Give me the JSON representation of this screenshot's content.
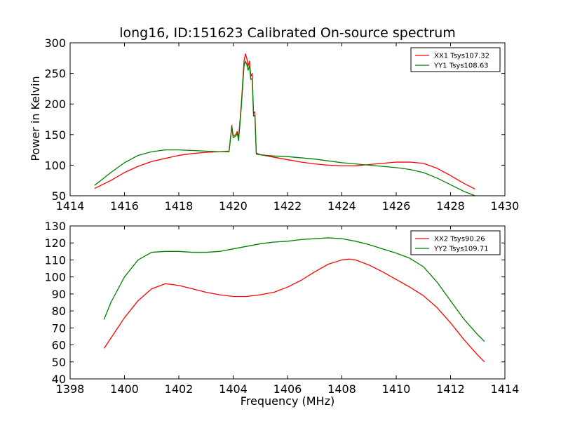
{
  "chart_data": [
    {
      "type": "line",
      "title": "long16, ID:151623 Calibrated On-source spectrum",
      "xlabel": "",
      "ylabel": "Power in Kelvin",
      "xlim": [
        1414,
        1430
      ],
      "ylim": [
        50,
        300
      ],
      "xticks": [
        1414,
        1416,
        1418,
        1420,
        1422,
        1424,
        1426,
        1428,
        1430
      ],
      "yticks": [
        50,
        100,
        150,
        200,
        250,
        300
      ],
      "legend_position": "top-right",
      "series": [
        {
          "name": "XX1 Tsys107.32",
          "color": "#ff0000",
          "x": [
            1414.9,
            1415.5,
            1416.0,
            1416.5,
            1417.0,
            1417.5,
            1418.0,
            1418.5,
            1419.0,
            1419.5,
            1419.85,
            1419.95,
            1420.0,
            1420.1,
            1420.15,
            1420.2,
            1420.3,
            1420.4,
            1420.45,
            1420.5,
            1420.55,
            1420.6,
            1420.65,
            1420.7,
            1420.75,
            1420.8,
            1420.85,
            1421.0,
            1421.5,
            1422.0,
            1422.5,
            1423.0,
            1423.5,
            1424.0,
            1424.5,
            1425.0,
            1425.5,
            1426.0,
            1426.5,
            1427.0,
            1427.5,
            1428.0,
            1428.5,
            1428.9
          ],
          "y": [
            62,
            75,
            88,
            98,
            106,
            111,
            116,
            119,
            121,
            122,
            123,
            165,
            148,
            150,
            155,
            145,
            200,
            270,
            282,
            275,
            262,
            270,
            245,
            250,
            185,
            187,
            120,
            117,
            113,
            109,
            105,
            102,
            100,
            99,
            99,
            101,
            103,
            105,
            105,
            103,
            95,
            83,
            70,
            61
          ]
        },
        {
          "name": "YY1 Tsys108.63",
          "color": "#008000",
          "x": [
            1414.9,
            1415.5,
            1416.0,
            1416.5,
            1417.0,
            1417.5,
            1418.0,
            1418.5,
            1419.0,
            1419.5,
            1419.85,
            1419.95,
            1420.0,
            1420.1,
            1420.15,
            1420.2,
            1420.3,
            1420.4,
            1420.45,
            1420.5,
            1420.55,
            1420.6,
            1420.65,
            1420.7,
            1420.75,
            1420.8,
            1420.85,
            1421.0,
            1421.5,
            1422.0,
            1422.5,
            1423.0,
            1423.5,
            1424.0,
            1424.5,
            1425.0,
            1425.5,
            1426.0,
            1426.5,
            1427.0,
            1427.5,
            1428.0,
            1428.5,
            1428.9
          ],
          "y": [
            67,
            88,
            104,
            116,
            122,
            125,
            125,
            124,
            123,
            122,
            122,
            163,
            145,
            148,
            152,
            140,
            195,
            262,
            270,
            265,
            255,
            262,
            240,
            242,
            180,
            182,
            118,
            117,
            115,
            114,
            112,
            110,
            107,
            104,
            102,
            100,
            98,
            96,
            93,
            88,
            79,
            68,
            57,
            50
          ]
        }
      ]
    },
    {
      "type": "line",
      "title": "",
      "xlabel": "Frequency (MHz)",
      "ylabel": "",
      "xlim": [
        1398,
        1414
      ],
      "ylim": [
        40,
        130
      ],
      "xticks": [
        1398,
        1400,
        1402,
        1404,
        1406,
        1408,
        1410,
        1412,
        1414
      ],
      "yticks": [
        40,
        50,
        60,
        70,
        80,
        90,
        100,
        110,
        120,
        130
      ],
      "legend_position": "top-right",
      "series": [
        {
          "name": "XX2 Tsys90.26",
          "color": "#ff0000",
          "x": [
            1399.25,
            1399.5,
            1400.0,
            1400.5,
            1401.0,
            1401.5,
            1402.0,
            1402.5,
            1403.0,
            1403.5,
            1404.0,
            1404.5,
            1405.0,
            1405.5,
            1406.0,
            1406.5,
            1407.0,
            1407.5,
            1408.0,
            1408.25,
            1408.5,
            1409.0,
            1409.5,
            1410.0,
            1410.5,
            1411.0,
            1411.5,
            1412.0,
            1412.5,
            1413.0,
            1413.25
          ],
          "y": [
            58,
            64,
            76,
            86,
            93,
            96,
            95,
            93,
            91,
            89.5,
            88.5,
            88.5,
            89.5,
            91,
            94,
            98,
            103,
            107.5,
            110,
            110.5,
            110,
            107,
            103,
            98.5,
            94,
            89,
            82,
            73,
            63,
            54,
            50
          ]
        },
        {
          "name": "YY2 Tsys109.71",
          "color": "#008000",
          "x": [
            1399.25,
            1399.5,
            1400.0,
            1400.5,
            1401.0,
            1401.5,
            1402.0,
            1402.5,
            1403.0,
            1403.5,
            1404.0,
            1404.5,
            1405.0,
            1405.5,
            1406.0,
            1406.5,
            1407.0,
            1407.5,
            1408.0,
            1408.5,
            1409.0,
            1409.5,
            1410.0,
            1410.5,
            1411.0,
            1411.5,
            1412.0,
            1412.5,
            1413.0,
            1413.25
          ],
          "y": [
            75,
            85,
            100,
            110,
            114.5,
            115,
            115,
            114.5,
            114.5,
            115,
            116.5,
            118,
            119.5,
            120.5,
            121,
            122,
            122.5,
            123,
            122.5,
            121,
            119,
            116.5,
            114,
            111,
            106,
            97,
            86,
            75,
            66,
            62
          ]
        }
      ]
    }
  ]
}
